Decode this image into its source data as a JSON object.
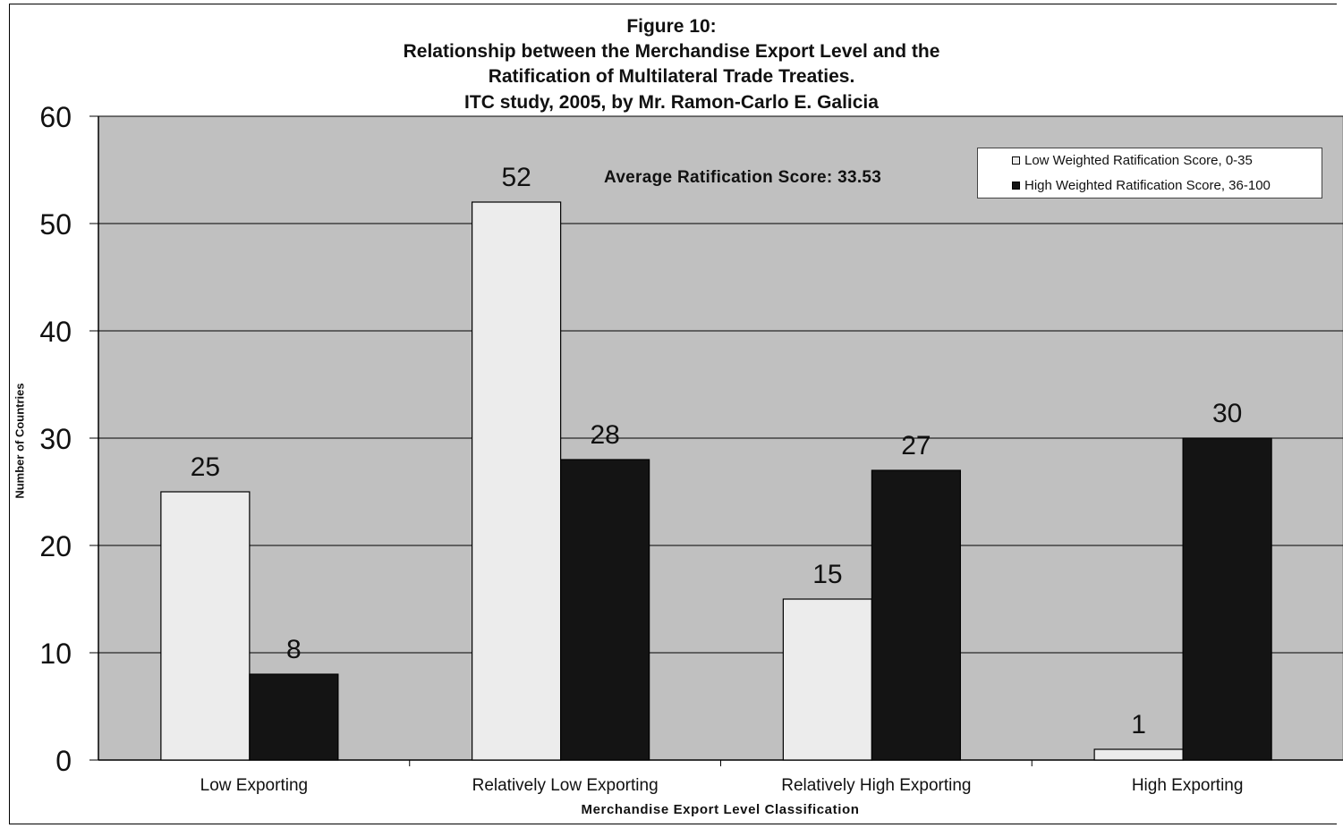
{
  "chart_data": {
    "type": "bar",
    "title_lines": [
      "Figure 10:",
      "Relationship between the Merchandise Export Level and the",
      "Ratification of Multilateral Trade Treaties.",
      "ITC study, 2005, by Mr. Ramon-Carlo E. Galicia"
    ],
    "xlabel": "Merchandise Export Level Classification",
    "ylabel": "Number of Countries",
    "ylim": [
      0,
      60
    ],
    "yticks": [
      0,
      10,
      20,
      30,
      40,
      50,
      60
    ],
    "grid": true,
    "legend_position": "top-right",
    "annotation": "Average Ratification Score: 33.53",
    "categories": [
      "Low Exporting",
      "Relatively Low Exporting",
      "Relatively High Exporting",
      "High Exporting"
    ],
    "series": [
      {
        "name": "Low  Weighted Ratification Score, 0-35",
        "color": "#ececec",
        "values": [
          25,
          52,
          15,
          1
        ]
      },
      {
        "name": "High Weighted Ratification Score, 36-100",
        "color": "#141414",
        "values": [
          8,
          28,
          27,
          30
        ]
      }
    ],
    "plot_background": "#c0c0c0"
  }
}
